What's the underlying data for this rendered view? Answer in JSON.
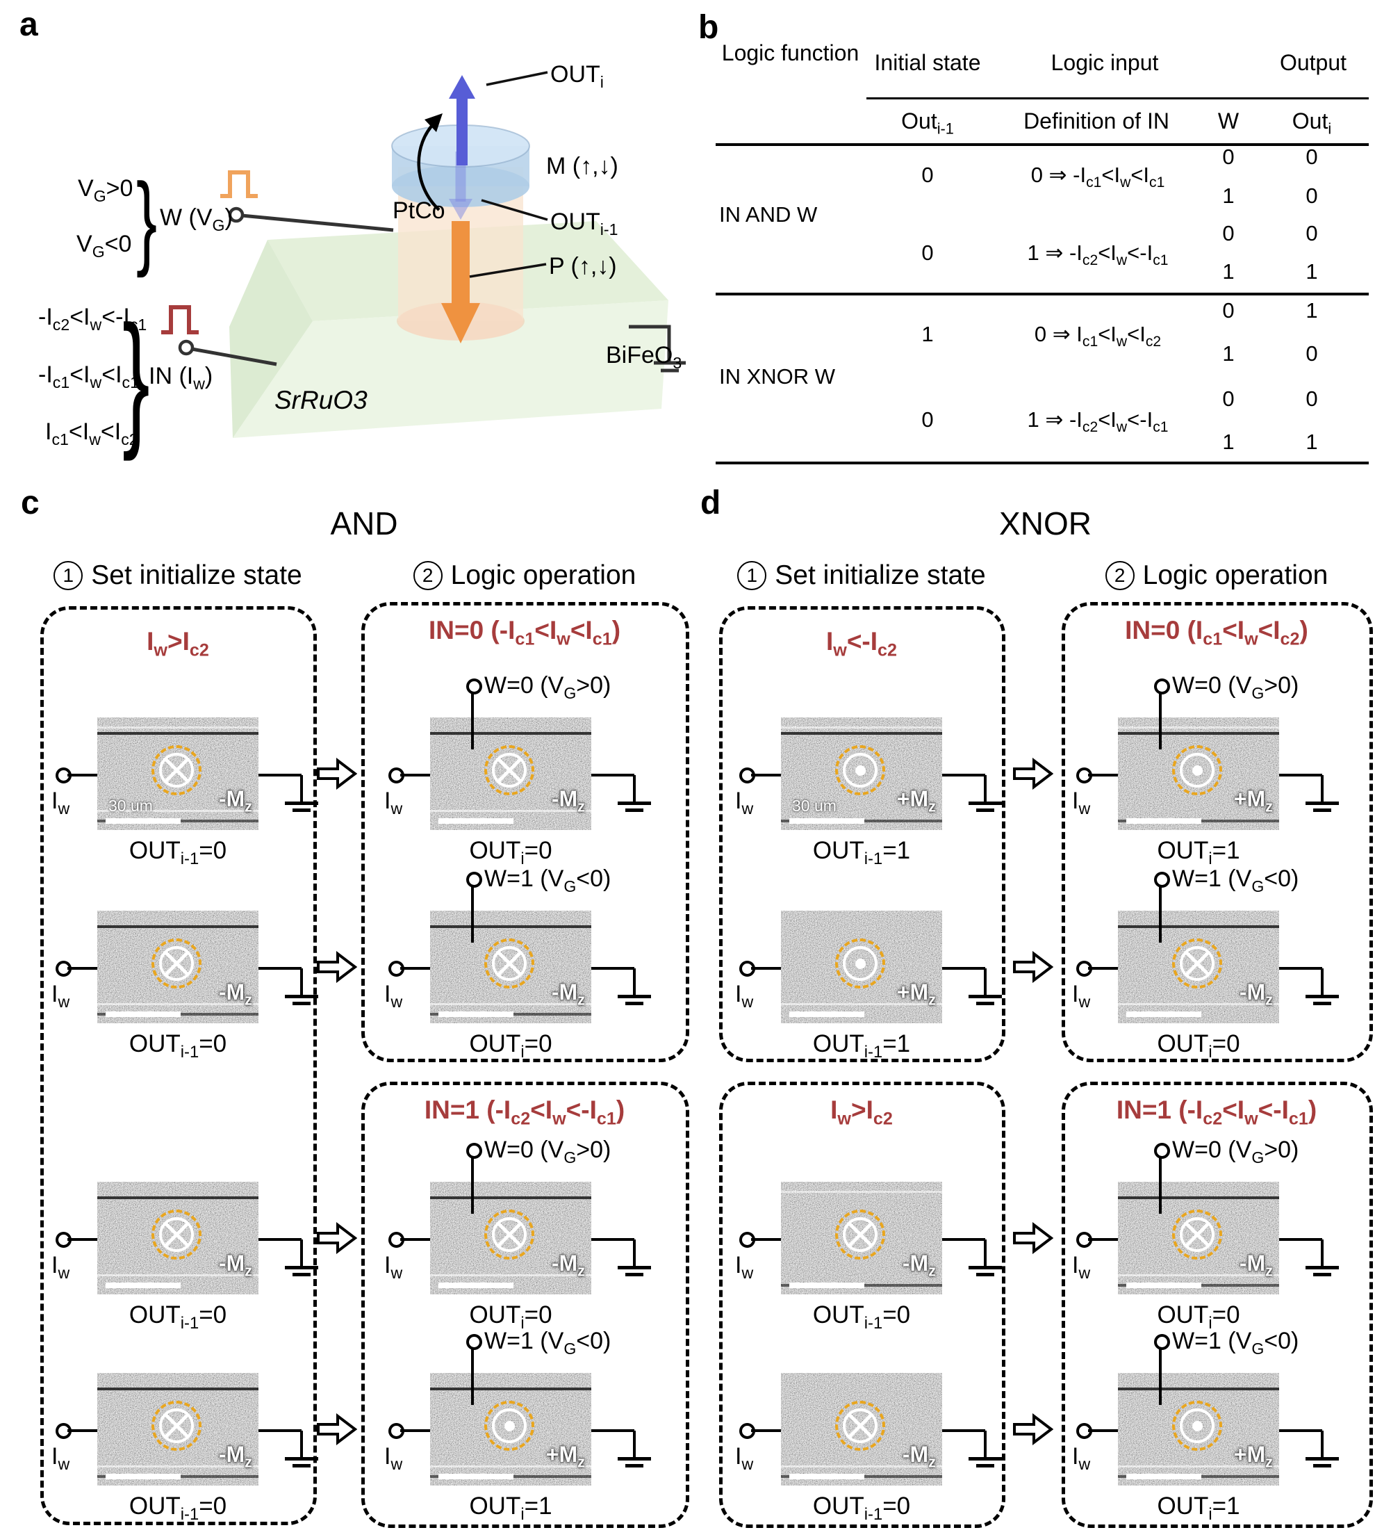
{
  "colors": {
    "accent_red": "#a63c3c",
    "pulse_orange": "#f0a35c",
    "dash_orange": "#e9a61f",
    "arrow_blue": "#575dd6",
    "arrow_orange": "#ef9240"
  },
  "panel_a": {
    "label": "a",
    "gate": {
      "pos": "V{G}>0",
      "neg": "V{G}<0",
      "label": "W (V{G})",
      "pulse_icon": "square-pulse"
    },
    "input": {
      "cond1": "-I{c2}<I{w}<-I{c1}",
      "cond2": "-I{c1}<I{w}<I{c1}",
      "cond3": "I{c1}<I{w}<I{c2}",
      "label": "IN (I{w})",
      "pulse_icon": "square-pulse"
    },
    "materials": {
      "top": "PtCo",
      "middle": "BiFeO{3}",
      "bottom": "SrRuO3"
    },
    "annotations": {
      "out_i": "OUT{i}",
      "m": "M (↑,↓)",
      "out_prev": "OUT{i-1}",
      "p": "P (↑,↓)"
    }
  },
  "panel_b": {
    "label": "b",
    "headers": {
      "function": "Logic function",
      "initial": "Initial state",
      "input": "Logic input",
      "output": "Output",
      "out_prev": "Out{i-1}",
      "definition": "Definition of IN",
      "w": "W",
      "out_i": "Out{i}"
    },
    "groups": [
      {
        "fn": "IN AND W",
        "blocks": [
          {
            "prev": "0",
            "def": "0 ⇒ -I{c1}<I{w}<I{c1}",
            "rows": [
              {
                "w": "0",
                "o": "0"
              },
              {
                "w": "1",
                "o": "0"
              }
            ]
          },
          {
            "prev": "0",
            "def": "1 ⇒ -I{c2}<I{w}<-I{c1}",
            "rows": [
              {
                "w": "0",
                "o": "0"
              },
              {
                "w": "1",
                "o": "1"
              }
            ]
          }
        ]
      },
      {
        "fn": "IN XNOR W",
        "blocks": [
          {
            "prev": "1",
            "def": "0 ⇒  I{c1}<I{w}<I{c2}",
            "rows": [
              {
                "w": "0",
                "o": "1"
              },
              {
                "w": "1",
                "o": "0"
              }
            ]
          },
          {
            "prev": "0",
            "def": "1 ⇒ -I{c2}<I{w}<-I{c1}",
            "rows": [
              {
                "w": "0",
                "o": "0"
              },
              {
                "w": "1",
                "o": "1"
              }
            ]
          }
        ]
      }
    ]
  },
  "shared": {
    "iw": "I{w}",
    "step1_num": "1",
    "step1": "Set initialize state",
    "step2_num": "2",
    "step2": "Logic operation"
  },
  "panel_c": {
    "label": "c",
    "title": "AND",
    "init": {
      "cond": "I{w}>I{c2}",
      "cells": [
        {
          "sym": "into-page",
          "mz": "-M{z}",
          "cap": "OUT{i-1}=0",
          "scale": "30 um"
        },
        {
          "sym": "into-page",
          "mz": "-M{z}",
          "cap": "OUT{i-1}=0"
        },
        {
          "sym": "into-page",
          "mz": "-M{z}",
          "cap": "OUT{i-1}=0"
        },
        {
          "sym": "into-page",
          "mz": "-M{z}",
          "cap": "OUT{i-1}=0"
        }
      ]
    },
    "op1": {
      "cond": "IN=0 (-I{c1}<I{w}<I{c1})",
      "cells": [
        {
          "w": "W=0 (V{G}>0)",
          "sym": "into-page",
          "mz": "-M{z}",
          "cap": "OUT{i}=0"
        },
        {
          "w": "W=1 (V{G}<0)",
          "sym": "into-page",
          "mz": "-M{z}",
          "cap": "OUT{i}=0"
        }
      ]
    },
    "op2": {
      "cond": "IN=1 (-I{c2}<I{w}<-I{c1})",
      "cells": [
        {
          "w": "W=0 (V{G}>0)",
          "sym": "into-page",
          "mz": "-M{z}",
          "cap": "OUT{i}=0"
        },
        {
          "w": "W=1 (V{G}<0)",
          "sym": "out-of-page",
          "mz": "+M{z}",
          "cap": "OUT{i}=1"
        }
      ]
    }
  },
  "panel_d": {
    "label": "d",
    "title": "XNOR",
    "init1": {
      "cond": "I{w}<-I{c2}",
      "cells": [
        {
          "sym": "out-of-page",
          "mz": "+M{z}",
          "cap": "OUT{i-1}=1",
          "scale": "30 um"
        },
        {
          "sym": "out-of-page",
          "mz": "+M{z}",
          "cap": "OUT{i-1}=1"
        }
      ]
    },
    "init2": {
      "cond": "I{w}>I{c2}",
      "cells": [
        {
          "sym": "into-page",
          "mz": "-M{z}",
          "cap": "OUT{i-1}=0"
        },
        {
          "sym": "into-page",
          "mz": "-M{z}",
          "cap": "OUT{i-1}=0"
        }
      ]
    },
    "op1": {
      "cond": "IN=0 (I{c1}<I{w}<I{c2})",
      "cells": [
        {
          "w": "W=0 (V{G}>0)",
          "sym": "out-of-page",
          "mz": "+M{z}",
          "cap": "OUT{i}=1"
        },
        {
          "w": "W=1 (V{G}<0)",
          "sym": "into-page",
          "mz": "-M{z}",
          "cap": "OUT{i}=0"
        }
      ]
    },
    "op2": {
      "cond": "IN=1 (-I{c2}<I{w}<-I{c1})",
      "cells": [
        {
          "w": "W=0 (V{G}>0)",
          "sym": "into-page",
          "mz": "-M{z}",
          "cap": "OUT{i}=0"
        },
        {
          "w": "W=1 (V{G}<0)",
          "sym": "out-of-page",
          "mz": "+M{z}",
          "cap": "OUT{i}=1"
        }
      ]
    }
  }
}
